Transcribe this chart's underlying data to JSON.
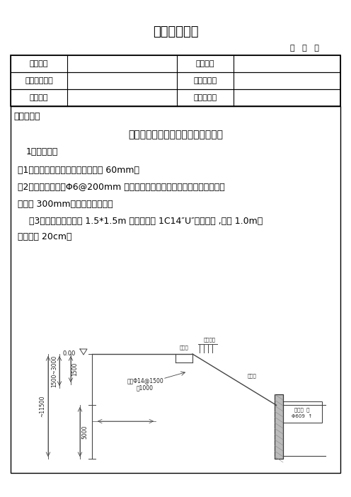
{
  "title": "技术交底记录",
  "date_label": "年   月   日",
  "table_rows": [
    [
      "工程名称",
      "",
      "交底地点",
      ""
    ],
    [
      "交底组织单位",
      "",
      "交底负责人",
      ""
    ],
    [
      "施工单位",
      "",
      "接收负责人",
      ""
    ]
  ],
  "content_label": "内容说明：",
  "subtitle": "综合管廊基坑边坡支护施工技术交底",
  "tech_title": "1、技术要求",
  "item1": "（1）放坡坡面喷射混凝土面层厚度 60mm；",
  "item2_line1": "（2）钢筋网片选用Φ6@200mm 双向钢筋网；网片铺设时每边的搭接长度不",
  "item2_line2": "应少于 300mm；采用绑扎固定。",
  "item3_line1": "    （3）放坡开挖坡面按 1.5*1.5m 梅花形布设 1C14″U″型钉固定 ,长度 1.0m，",
  "item3_line2": "端部反弯 20cm。",
  "bg_color": "#ffffff",
  "text_color": "#000000",
  "border_color": "#000000"
}
